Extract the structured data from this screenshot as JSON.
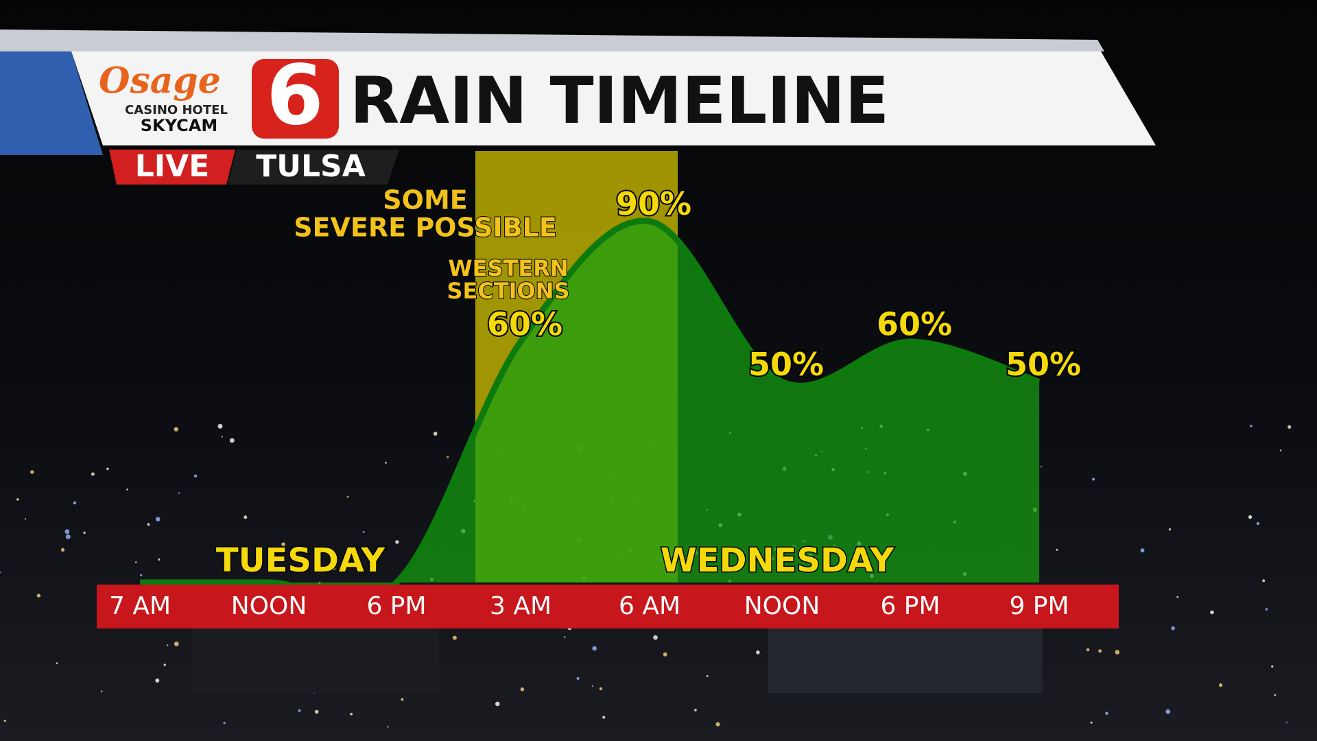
{
  "branding": {
    "logo_script": "Osage",
    "logo_line1": "CASINO HOTEL",
    "logo_line2": "SKYCAM",
    "channel": "6",
    "live": "LIVE",
    "location": "TULSA"
  },
  "chart_data": {
    "type": "area",
    "title": "RAIN TIMELINE",
    "categories": [
      "7 AM",
      "NOON",
      "6 PM",
      "3 AM",
      "6 AM",
      "NOON",
      "6 PM",
      "9 PM"
    ],
    "values": [
      0,
      0,
      0,
      60,
      90,
      50,
      60,
      50
    ],
    "value_labels": [
      null,
      null,
      null,
      "60%",
      "90%",
      "50%",
      "60%",
      "50%"
    ],
    "color": "#0c7a0c",
    "fill": "#15a010",
    "highlight_color": "#c7b800",
    "annotations": [
      {
        "lines": [
          "SOME",
          "SEVERE POSSIBLE"
        ]
      },
      {
        "lines": [
          "WESTERN",
          "SECTIONS"
        ]
      }
    ],
    "day_labels": [
      "TUESDAY",
      "WEDNESDAY"
    ]
  }
}
